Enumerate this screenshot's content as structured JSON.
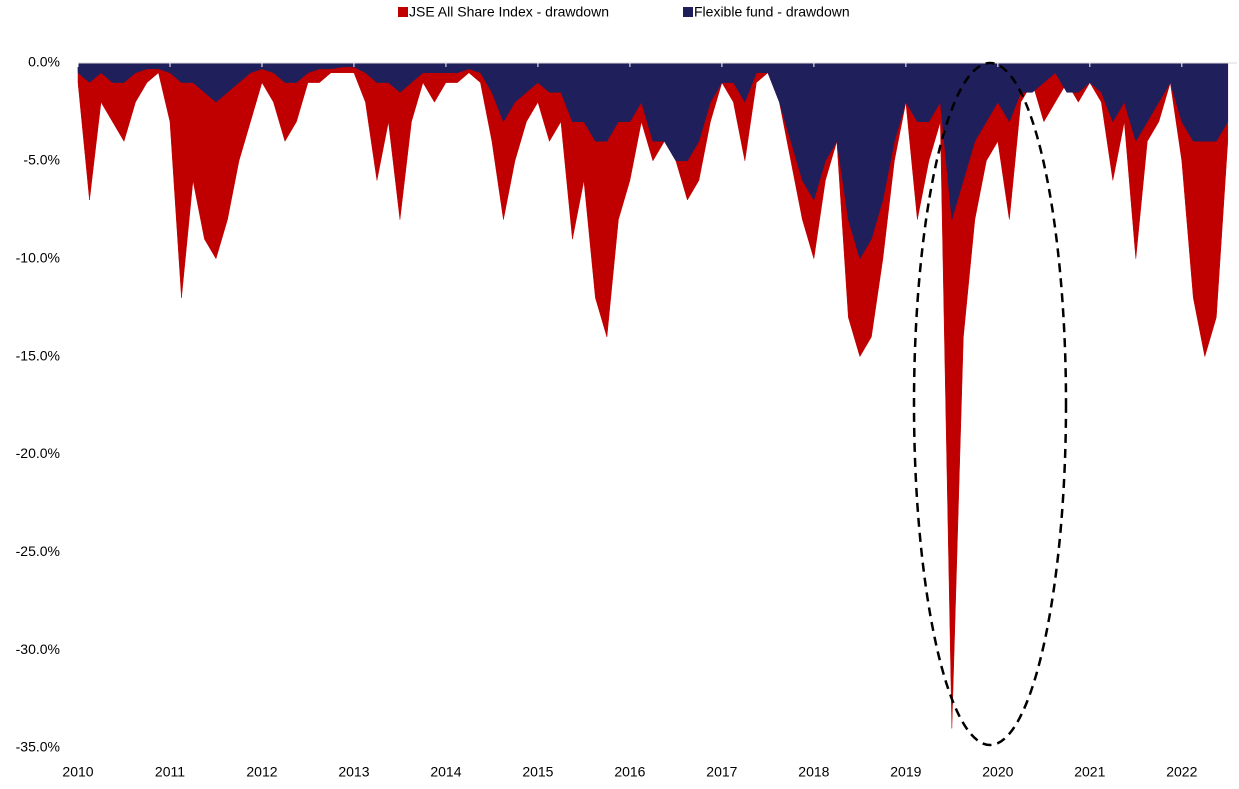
{
  "chart_data": {
    "type": "area",
    "x": [
      2010,
      2010.125,
      2010.25,
      2010.375,
      2010.5,
      2010.625,
      2010.75,
      2010.875,
      2011,
      2011.125,
      2011.25,
      2011.375,
      2011.5,
      2011.625,
      2011.75,
      2011.875,
      2012,
      2012.125,
      2012.25,
      2012.375,
      2012.5,
      2012.625,
      2012.75,
      2012.875,
      2013,
      2013.125,
      2013.25,
      2013.375,
      2013.5,
      2013.625,
      2013.75,
      2013.875,
      2014,
      2014.125,
      2014.25,
      2014.375,
      2014.5,
      2014.625,
      2014.75,
      2014.875,
      2015,
      2015.125,
      2015.25,
      2015.375,
      2015.5,
      2015.625,
      2015.75,
      2015.875,
      2016,
      2016.125,
      2016.25,
      2016.375,
      2016.5,
      2016.625,
      2016.75,
      2016.875,
      2017,
      2017.125,
      2017.25,
      2017.375,
      2017.5,
      2017.625,
      2017.75,
      2017.875,
      2018,
      2018.125,
      2018.25,
      2018.375,
      2018.5,
      2018.625,
      2018.75,
      2018.875,
      2019,
      2019.125,
      2019.25,
      2019.375,
      2019.5,
      2019.625,
      2019.75,
      2019.875,
      2020,
      2020.125,
      2020.25,
      2020.375,
      2020.5,
      2020.625,
      2020.75,
      2020.875,
      2021,
      2021.125,
      2021.25,
      2021.375,
      2021.5,
      2021.625,
      2021.75,
      2021.875,
      2022,
      2022.125,
      2022.25,
      2022.375,
      2022.5
    ],
    "series": [
      {
        "name": "JSE All Share Index - drawdown",
        "color": "#c00000",
        "values": [
          -1,
          -7,
          -2,
          -3,
          -4,
          -2,
          -1,
          -0.5,
          -3,
          -12,
          -6,
          -9,
          -10,
          -8,
          -5,
          -3,
          -1,
          -2,
          -4,
          -3,
          -1,
          -1,
          -0.5,
          -0.5,
          -0.5,
          -2,
          -6,
          -3,
          -8,
          -3,
          -1,
          -2,
          -1,
          -1,
          -0.5,
          -1,
          -4,
          -8,
          -5,
          -3,
          -2,
          -4,
          -3,
          -9,
          -6,
          -12,
          -14,
          -8,
          -6,
          -3,
          -5,
          -4,
          -5,
          -7,
          -6,
          -3,
          -1,
          -2,
          -5,
          -1,
          -0.5,
          -2,
          -5,
          -8,
          -10,
          -6,
          -4,
          -13,
          -15,
          -14,
          -10,
          -5,
          -2,
          -8,
          -5,
          -3,
          -34,
          -14,
          -8,
          -5,
          -4,
          -8,
          -2,
          -1,
          -3,
          -2,
          -1,
          -2,
          -1,
          -2,
          -6,
          -3,
          -10,
          -4,
          -3,
          -1,
          -5,
          -12,
          -15,
          -13,
          -4
        ]
      },
      {
        "name": "Flexible fund - drawdown",
        "color": "#1f1f5c",
        "values": [
          -0.5,
          -1,
          -0.5,
          -1,
          -1,
          -0.5,
          -0.3,
          -0.3,
          -0.5,
          -1,
          -1,
          -1.5,
          -2,
          -1.5,
          -1,
          -0.5,
          -0.3,
          -0.5,
          -1,
          -1,
          -0.5,
          -0.3,
          -0.3,
          -0.2,
          -0.2,
          -0.5,
          -1,
          -1,
          -1.5,
          -1,
          -0.5,
          -0.5,
          -0.5,
          -0.5,
          -0.3,
          -0.5,
          -1.5,
          -3,
          -2,
          -1.5,
          -1,
          -1.5,
          -1.5,
          -3,
          -3,
          -4,
          -4,
          -3,
          -3,
          -2,
          -4,
          -4,
          -5,
          -5,
          -4,
          -2,
          -1,
          -1,
          -2,
          -0.5,
          -0.5,
          -2,
          -4,
          -6,
          -7,
          -5,
          -4,
          -8,
          -10,
          -9,
          -7,
          -4,
          -2,
          -3,
          -3,
          -2,
          -8,
          -6,
          -4,
          -3,
          -2,
          -3,
          -1.5,
          -1.5,
          -1,
          -0.5,
          -1.5,
          -1.5,
          -1,
          -1.5,
          -3,
          -2,
          -4,
          -3,
          -2,
          -1,
          -3,
          -4,
          -4,
          -4,
          -3
        ]
      }
    ],
    "xlim": [
      2010,
      2022.6
    ],
    "xticks": [
      2010,
      2011,
      2012,
      2013,
      2014,
      2015,
      2016,
      2017,
      2018,
      2019,
      2020,
      2021,
      2022
    ],
    "ylim": [
      -35,
      0
    ],
    "yticks": [
      {
        "value": 0,
        "label": "0.0%"
      },
      {
        "value": -5,
        "label": "-5.0%"
      },
      {
        "value": -10,
        "label": "-10.0%"
      },
      {
        "value": -15,
        "label": "-15.0%"
      },
      {
        "value": -20,
        "label": "-20.0%"
      },
      {
        "value": -25,
        "label": "-25.0%"
      },
      {
        "value": -30,
        "label": "-30.0%"
      },
      {
        "value": -35,
        "label": "-35.0%"
      }
    ],
    "legend": "top"
  }
}
